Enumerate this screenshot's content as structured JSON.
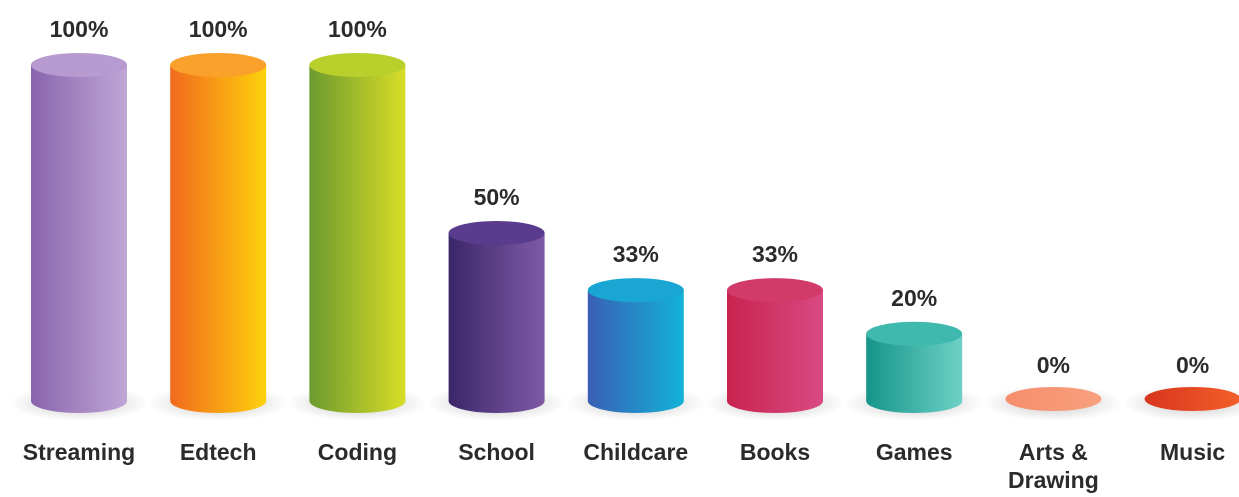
{
  "chart_data": {
    "type": "bar",
    "style": "3d-cylinder",
    "categories": [
      [
        "Streaming"
      ],
      [
        "Edtech"
      ],
      [
        "Coding"
      ],
      [
        "School"
      ],
      [
        "Childcare"
      ],
      [
        "Books"
      ],
      [
        "Games"
      ],
      [
        "Arts &",
        "Drawing"
      ],
      [
        "Music"
      ]
    ],
    "values": [
      100,
      100,
      100,
      50,
      33,
      33,
      20,
      0,
      0
    ],
    "value_labels": [
      "100%",
      "100%",
      "100%",
      "50%",
      "33%",
      "33%",
      "20%",
      "0%",
      "0%"
    ],
    "ylim": [
      0,
      100
    ],
    "grid": false,
    "legend": "none",
    "colors": [
      {
        "dark": "#8a64ad",
        "light": "#c0a6d6",
        "top": "#b79bd0"
      },
      {
        "dark": "#f26a1f",
        "light": "#fdd20b",
        "top": "#f9a12a"
      },
      {
        "dark": "#6b9a2e",
        "light": "#d9dd28",
        "top": "#b9cf2b"
      },
      {
        "dark": "#3a2768",
        "light": "#7f5aa6",
        "top": "#5a3c8f"
      },
      {
        "dark": "#3a5fb5",
        "light": "#12b3d8",
        "top": "#1aa6d2"
      },
      {
        "dark": "#c8234f",
        "light": "#d94a83",
        "top": "#d23a6a"
      },
      {
        "dark": "#15958a",
        "light": "#6ed0c6",
        "top": "#3fb9ae"
      },
      {
        "dark": "#f58e6c",
        "light": "#f8a07e",
        "top": "#f79775"
      },
      {
        "dark": "#d8351d",
        "light": "#f2602a",
        "top": "#e84a22"
      }
    ]
  }
}
